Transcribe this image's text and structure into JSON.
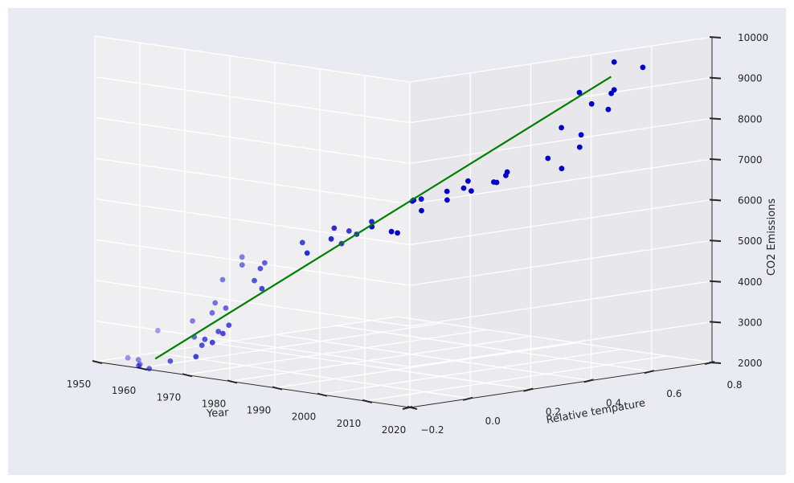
{
  "chart_data": {
    "type": "scatter",
    "projection": "3d",
    "title": "",
    "xlabel": "Year",
    "ylabel": "Relative tempature",
    "zlabel": "CO2 Emissions",
    "xlim": [
      1950,
      2020
    ],
    "ylim": [
      -0.2,
      0.8
    ],
    "zlim": [
      2000,
      10000
    ],
    "xticks": [
      "1950",
      "1960",
      "1970",
      "1980",
      "1990",
      "2000",
      "2010",
      "2020"
    ],
    "yticks": [
      "−0.2",
      "0.0",
      "0.2",
      "0.4",
      "0.6",
      "0.8"
    ],
    "zticks": [
      "2000",
      "3000",
      "4000",
      "5000",
      "6000",
      "7000",
      "8000",
      "9000",
      "10000"
    ],
    "grid": true,
    "colors": {
      "background": "#eaeaf2",
      "pane_back": "#efeff2",
      "pane_side": "#e8e8ec",
      "pane_floor": "#ebebef",
      "grid": "#ffffff",
      "points": "#0000cc",
      "fit_line": "#008000",
      "axis": "#262626"
    },
    "series": [
      {
        "type": "scatter",
        "x": [
          1950,
          1951,
          1952,
          1953,
          1954,
          1955,
          1956,
          1957,
          1958,
          1959,
          1960,
          1961,
          1962,
          1963,
          1964,
          1965,
          1966,
          1967,
          1968,
          1969,
          1970,
          1971,
          1972,
          1973,
          1974,
          1975,
          1976,
          1977,
          1978,
          1979,
          1980,
          1981,
          1982,
          1983,
          1984,
          1985,
          1986,
          1987,
          1988,
          1989,
          1990,
          1991,
          1992,
          1993,
          1994,
          1995,
          1996,
          1997,
          1998,
          1999,
          2000,
          2001,
          2002,
          2003,
          2004,
          2005,
          2006,
          2007,
          2008,
          2009,
          2010,
          2011
        ],
        "y": [
          -0.02,
          -0.07,
          0.02,
          0.09,
          -0.11,
          -0.13,
          -0.18,
          0.05,
          0.07,
          0.03,
          -0.02,
          0.06,
          0.03,
          0.05,
          -0.2,
          -0.1,
          -0.05,
          -0.02,
          -0.07,
          0.07,
          0.03,
          -0.09,
          0.02,
          0.16,
          -0.07,
          -0.01,
          -0.1,
          0.18,
          0.07,
          0.16,
          0.27,
          0.32,
          0.14,
          0.31,
          0.16,
          0.12,
          0.18,
          0.33,
          0.4,
          0.27,
          0.45,
          0.41,
          0.23,
          0.24,
          0.31,
          0.45,
          0.35,
          0.46,
          0.63,
          0.4,
          0.42,
          0.54,
          0.63,
          0.62,
          0.54,
          0.68,
          0.61,
          0.66,
          0.54,
          0.64,
          0.72,
          0.61
        ],
        "z": [
          1630,
          1770,
          1800,
          1850,
          1900,
          2050,
          2170,
          2240,
          2300,
          2440,
          2570,
          2580,
          2680,
          2830,
          2990,
          3130,
          3290,
          3390,
          3590,
          3800,
          4060,
          4230,
          4400,
          4640,
          4620,
          4620,
          4880,
          5030,
          5080,
          5350,
          5280,
          5120,
          5040,
          5130,
          5280,
          5420,
          5600,
          5720,
          5920,
          6050,
          6120,
          6250,
          6170,
          6200,
          6330,
          6420,
          6570,
          6600,
          6600,
          6530,
          6780,
          7000,
          7190,
          7520,
          7800,
          8110,
          8340,
          8560,
          8730,
          8700,
          9180,
          9450
        ]
      },
      {
        "type": "line",
        "name": "",
        "x": [
          1950,
          2011
        ],
        "y": [
          0.0,
          0.6
        ],
        "z": [
          1850,
          9100
        ]
      }
    ]
  }
}
